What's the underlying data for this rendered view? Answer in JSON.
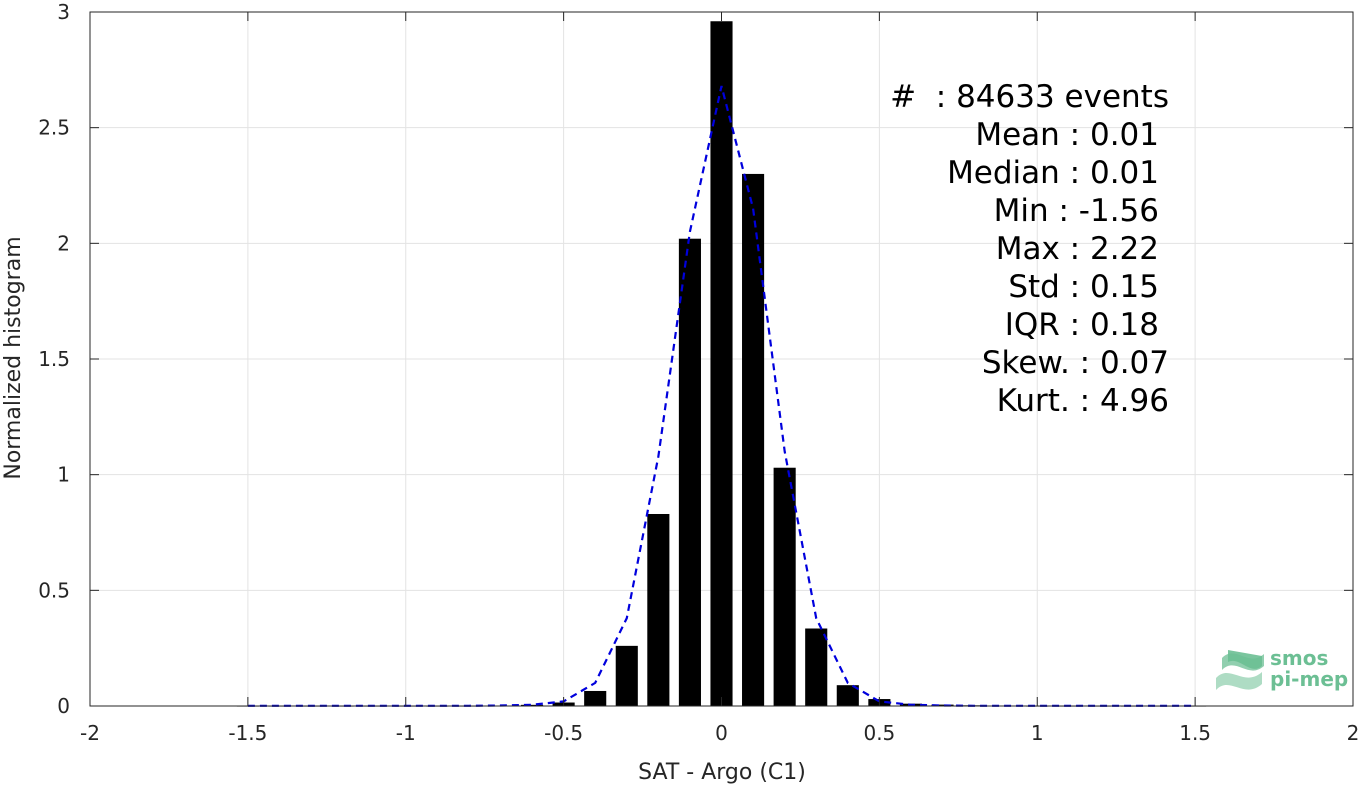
{
  "chart_data": {
    "type": "bar",
    "xlabel": "SAT - Argo (C1)",
    "ylabel": "Normalized histogram",
    "xlim": [
      -2,
      2
    ],
    "ylim": [
      0,
      3
    ],
    "grid": true,
    "x_ticks": [
      -2,
      -1.5,
      -1,
      -0.5,
      0,
      0.5,
      1,
      1.5,
      2
    ],
    "x_tick_labels": [
      "-2",
      "-1.5",
      "-1",
      "-0.5",
      "0",
      "0.5",
      "1",
      "1.5",
      "2"
    ],
    "y_ticks": [
      0,
      0.5,
      1,
      1.5,
      2,
      2.5,
      3
    ],
    "y_tick_labels": [
      "0",
      "0.5",
      "1",
      "1.5",
      "2",
      "2.5",
      "3"
    ],
    "bar_width": 0.07,
    "bar_color": "#000000",
    "bars": {
      "x": [
        -1.5,
        -1.4,
        -1.3,
        -1.2,
        -1.1,
        -1.0,
        -0.9,
        -0.8,
        -0.7,
        -0.6,
        -0.5,
        -0.4,
        -0.3,
        -0.2,
        -0.1,
        0.0,
        0.1,
        0.2,
        0.3,
        0.4,
        0.5,
        0.6,
        0.7,
        0.8,
        0.9,
        1.0,
        1.1,
        1.2,
        1.3,
        1.4,
        1.5
      ],
      "y": [
        0.001,
        0.001,
        0.001,
        0.001,
        0.001,
        0.001,
        0.001,
        0.001,
        0.002,
        0.005,
        0.015,
        0.065,
        0.26,
        0.83,
        2.02,
        2.96,
        2.3,
        1.03,
        0.335,
        0.09,
        0.03,
        0.01,
        0.006,
        0.003,
        0.002,
        0.001,
        0.001,
        0.001,
        0.001,
        0.001,
        0.001
      ]
    },
    "fit_curve": {
      "style": "dashed",
      "color": "#0000dd",
      "x": [
        -1.5,
        -1.4,
        -1.3,
        -1.2,
        -1.1,
        -1.0,
        -0.9,
        -0.8,
        -0.7,
        -0.6,
        -0.5,
        -0.4,
        -0.3,
        -0.2,
        -0.1,
        0.0,
        0.1,
        0.2,
        0.3,
        0.4,
        0.5,
        0.6,
        0.7,
        0.8,
        0.9,
        1.0,
        1.1,
        1.2,
        1.3,
        1.4,
        1.5
      ],
      "y": [
        0.001,
        0.001,
        0.001,
        0.001,
        0.001,
        0.001,
        0.001,
        0.001,
        0.002,
        0.005,
        0.02,
        0.1,
        0.38,
        1.08,
        2.05,
        2.68,
        2.15,
        1.1,
        0.38,
        0.1,
        0.02,
        0.005,
        0.002,
        0.001,
        0.001,
        0.001,
        0.001,
        0.001,
        0.001,
        0.001,
        0.001
      ]
    },
    "annotations": [
      "#  : 84633 events",
      "Mean : 0.01",
      "Median : 0.01",
      "Min : -1.56",
      "Max : 2.22",
      "Std : 0.15",
      "IQR : 0.18",
      "Skew. : 0.07",
      "Kurt. : 4.96"
    ]
  },
  "logo": {
    "line1": "smos",
    "line2": "pi-mep",
    "color": "#6cbf94"
  }
}
